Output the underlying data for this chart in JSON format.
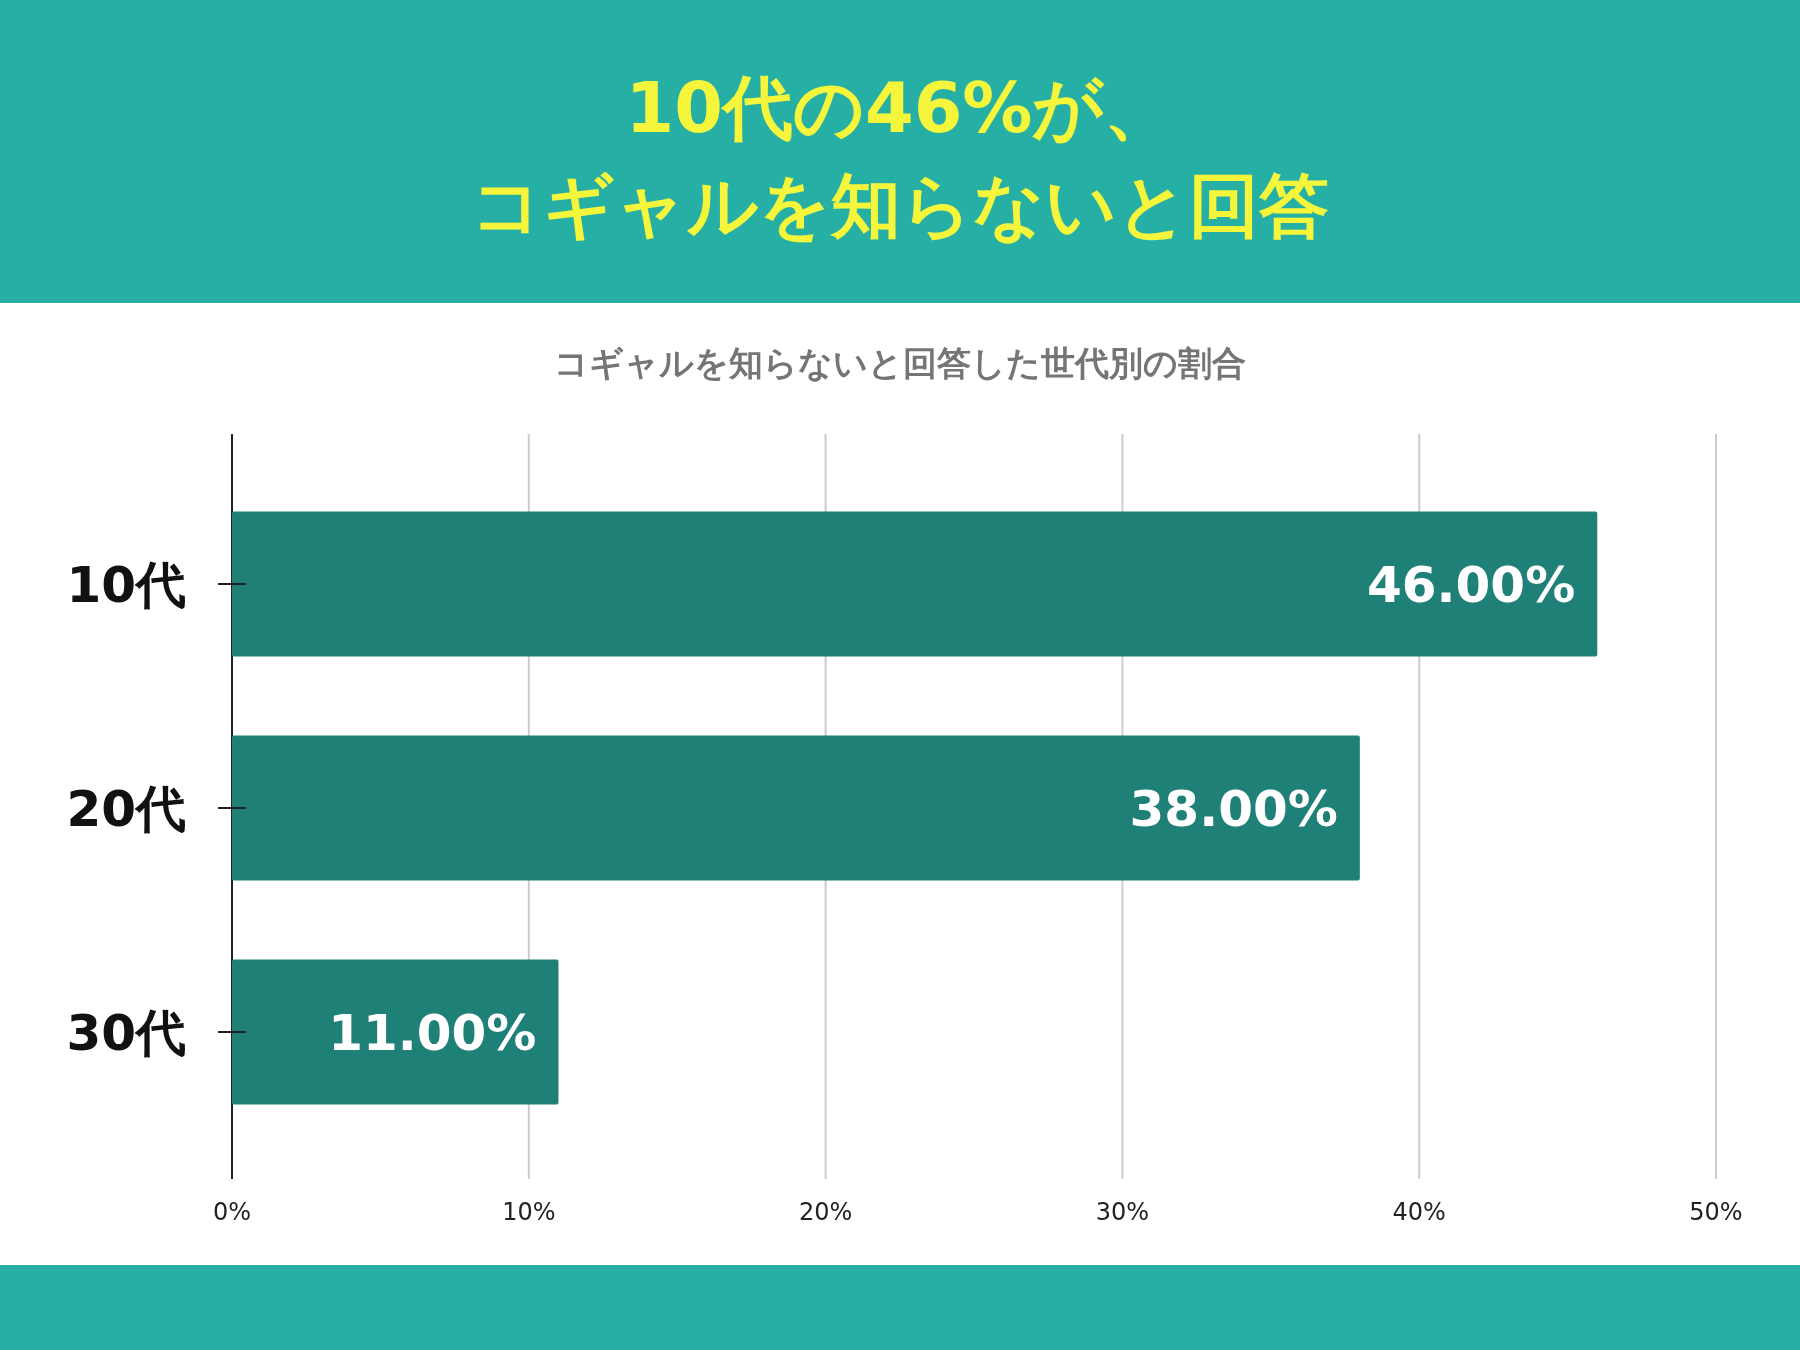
{
  "chart_data": {
    "type": "bar",
    "orientation": "horizontal",
    "title": "10代の46%が、",
    "subtitle": "コギャルを知らないと回答",
    "annotations": [
      "コギャルを知らないと回答した世代別の割合"
    ],
    "categories": [
      "10代",
      "20代",
      "30代"
    ],
    "values": [
      46,
      38,
      11
    ],
    "value_labels": [
      "46.00%",
      "38.00%",
      "11.00%"
    ],
    "color": "#1e8077",
    "xlim": [
      0,
      50
    ],
    "xticks": [
      {
        "value": 0,
        "label": "0%"
      },
      {
        "value": 10,
        "label": "10%"
      },
      {
        "value": 20,
        "label": "20%"
      },
      {
        "value": 30,
        "label": "30%"
      },
      {
        "value": 40,
        "label": "40%"
      },
      {
        "value": 50,
        "label": "50%"
      }
    ],
    "grid": "x"
  }
}
